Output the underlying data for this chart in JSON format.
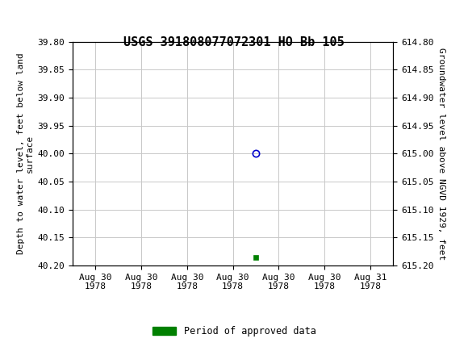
{
  "title": "USGS 391808077072301 HO Bb 105",
  "ylabel_left": "Depth to water level, feet below land\nsurface",
  "ylabel_right": "Groundwater level above NGVD 1929, feet",
  "ylim_left": [
    39.8,
    40.2
  ],
  "ylim_right": [
    615.2,
    614.8
  ],
  "yticks_left": [
    39.8,
    39.85,
    39.9,
    39.95,
    40.0,
    40.05,
    40.1,
    40.15,
    40.2
  ],
  "yticks_right": [
    615.2,
    615.15,
    615.1,
    615.05,
    615.0,
    614.95,
    614.9,
    614.85,
    614.8
  ],
  "ytick_labels_left": [
    "39.80",
    "39.85",
    "39.90",
    "39.95",
    "40.00",
    "40.05",
    "40.10",
    "40.15",
    "40.20"
  ],
  "ytick_labels_right": [
    "615.20",
    "615.15",
    "615.10",
    "615.05",
    "615.00",
    "614.95",
    "614.90",
    "614.85",
    "614.80"
  ],
  "data_point_x": 3.5,
  "data_point_y": 40.0,
  "marker_x": 3.5,
  "marker_y": 40.185,
  "x_tick_labels": [
    "Aug 30\n1978",
    "Aug 30\n1978",
    "Aug 30\n1978",
    "Aug 30\n1978",
    "Aug 30\n1978",
    "Aug 30\n1978",
    "Aug 31\n1978"
  ],
  "x_ticks": [
    0,
    1,
    2,
    3,
    4,
    5,
    6
  ],
  "xlim": [
    -0.5,
    6.5
  ],
  "background_color": "#ffffff",
  "plot_bg_color": "#ffffff",
  "grid_color": "#c8c8c8",
  "header_color": "#1a6b3c",
  "circle_color": "#0000cc",
  "square_color": "#008000",
  "legend_label": "Period of approved data",
  "title_fontsize": 11,
  "axis_label_fontsize": 8,
  "tick_fontsize": 8
}
